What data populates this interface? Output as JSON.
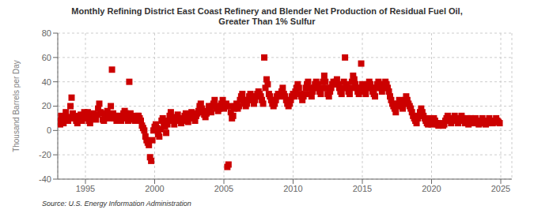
{
  "chart_data": {
    "type": "scatter",
    "title": "Monthly Refining District East Coast Refinery and Blender Net Production of Residual Fuel Oil,\nGreater Than 1% Sulfur",
    "ylabel": "Thousand Barrels per Day",
    "annotations": [
      "Source: U.S. Energy Information Administration"
    ],
    "color": "#cc0000",
    "marker": "square",
    "grid": true,
    "xlim": [
      1993.0,
      2025.8
    ],
    "ylim": [
      -40,
      80
    ],
    "xticks": [
      1995,
      2000,
      2005,
      2010,
      2015,
      2020,
      2025
    ],
    "yticks": [
      -40,
      -20,
      0,
      20,
      40,
      60,
      80
    ],
    "x": [
      1993.083,
      1993.167,
      1993.25,
      1993.333,
      1993.417,
      1993.5,
      1993.583,
      1993.667,
      1993.75,
      1993.833,
      1993.917,
      1994.0,
      1994.083,
      1994.167,
      1994.25,
      1994.333,
      1994.417,
      1994.5,
      1994.583,
      1994.667,
      1994.75,
      1994.833,
      1994.917,
      1995.0,
      1995.083,
      1995.167,
      1995.25,
      1995.333,
      1995.417,
      1995.5,
      1995.583,
      1995.667,
      1995.75,
      1995.833,
      1995.917,
      1996.0,
      1996.083,
      1996.167,
      1996.25,
      1996.333,
      1996.417,
      1996.5,
      1996.583,
      1996.667,
      1996.75,
      1996.833,
      1996.917,
      1997.0,
      1997.083,
      1997.167,
      1997.25,
      1997.333,
      1997.417,
      1997.5,
      1997.583,
      1997.667,
      1997.75,
      1997.833,
      1997.917,
      1998.0,
      1998.083,
      1998.167,
      1998.25,
      1998.333,
      1998.417,
      1998.5,
      1998.583,
      1998.667,
      1998.75,
      1998.833,
      1998.917,
      1999.0,
      1999.083,
      1999.167,
      1999.25,
      1999.333,
      1999.417,
      1999.5,
      1999.583,
      1999.667,
      1999.75,
      1999.833,
      1999.917,
      2000.0,
      2000.083,
      2000.167,
      2000.25,
      2000.333,
      2000.417,
      2000.5,
      2000.583,
      2000.667,
      2000.75,
      2000.833,
      2000.917,
      2001.0,
      2001.083,
      2001.167,
      2001.25,
      2001.333,
      2001.417,
      2001.5,
      2001.583,
      2001.667,
      2001.75,
      2001.833,
      2001.917,
      2002.0,
      2002.083,
      2002.167,
      2002.25,
      2002.333,
      2002.417,
      2002.5,
      2002.583,
      2002.667,
      2002.75,
      2002.833,
      2002.917,
      2003.0,
      2003.083,
      2003.167,
      2003.25,
      2003.333,
      2003.417,
      2003.5,
      2003.583,
      2003.667,
      2003.75,
      2003.833,
      2003.917,
      2004.0,
      2004.083,
      2004.167,
      2004.25,
      2004.333,
      2004.417,
      2004.5,
      2004.583,
      2004.667,
      2004.75,
      2004.833,
      2004.917,
      2005.0,
      2005.083,
      2005.167,
      2005.25,
      2005.333,
      2005.417,
      2005.5,
      2005.583,
      2005.667,
      2005.75,
      2005.833,
      2005.917,
      2006.0,
      2006.083,
      2006.167,
      2006.25,
      2006.333,
      2006.417,
      2006.5,
      2006.583,
      2006.667,
      2006.75,
      2006.833,
      2006.917,
      2007.0,
      2007.083,
      2007.167,
      2007.25,
      2007.333,
      2007.417,
      2007.5,
      2007.583,
      2007.667,
      2007.75,
      2007.833,
      2007.917,
      2008.0,
      2008.083,
      2008.167,
      2008.25,
      2008.333,
      2008.417,
      2008.5,
      2008.583,
      2008.667,
      2008.75,
      2008.833,
      2008.917,
      2009.0,
      2009.083,
      2009.167,
      2009.25,
      2009.333,
      2009.417,
      2009.5,
      2009.583,
      2009.667,
      2009.75,
      2009.833,
      2009.917,
      2010.0,
      2010.083,
      2010.167,
      2010.25,
      2010.333,
      2010.417,
      2010.5,
      2010.583,
      2010.667,
      2010.75,
      2010.833,
      2010.917,
      2011.0,
      2011.083,
      2011.167,
      2011.25,
      2011.333,
      2011.417,
      2011.5,
      2011.583,
      2011.667,
      2011.75,
      2011.833,
      2011.917,
      2012.0,
      2012.083,
      2012.167,
      2012.25,
      2012.333,
      2012.417,
      2012.5,
      2012.583,
      2012.667,
      2012.75,
      2012.833,
      2012.917,
      2013.0,
      2013.083,
      2013.167,
      2013.25,
      2013.333,
      2013.417,
      2013.5,
      2013.583,
      2013.667,
      2013.75,
      2013.833,
      2013.917,
      2014.0,
      2014.083,
      2014.167,
      2014.25,
      2014.333,
      2014.417,
      2014.5,
      2014.583,
      2014.667,
      2014.75,
      2014.833,
      2014.917,
      2015.0,
      2015.083,
      2015.167,
      2015.25,
      2015.333,
      2015.417,
      2015.5,
      2015.583,
      2015.667,
      2015.75,
      2015.833,
      2015.917,
      2016.0,
      2016.083,
      2016.167,
      2016.25,
      2016.333,
      2016.417,
      2016.5,
      2016.583,
      2016.667,
      2016.75,
      2016.833,
      2016.917,
      2017.0,
      2017.083,
      2017.167,
      2017.25,
      2017.333,
      2017.417,
      2017.5,
      2017.583,
      2017.667,
      2017.75,
      2017.833,
      2017.917,
      2018.0,
      2018.083,
      2018.167,
      2018.25,
      2018.333,
      2018.417,
      2018.5,
      2018.583,
      2018.667,
      2018.75,
      2018.833,
      2018.917,
      2019.0,
      2019.083,
      2019.167,
      2019.25,
      2019.333,
      2019.417,
      2019.5,
      2019.583,
      2019.667,
      2019.75,
      2019.833,
      2019.917,
      2020.0,
      2020.083,
      2020.167,
      2020.25,
      2020.333,
      2020.417,
      2020.5,
      2020.583,
      2020.667,
      2020.75,
      2020.833,
      2020.917,
      2021.0,
      2021.083,
      2021.167,
      2021.25,
      2021.333,
      2021.417,
      2021.5,
      2021.583,
      2021.667,
      2021.75,
      2021.833,
      2021.917,
      2022.0,
      2022.083,
      2022.167,
      2022.25,
      2022.333,
      2022.417,
      2022.5,
      2022.583,
      2022.667,
      2022.75,
      2022.833,
      2022.917,
      2023.0,
      2023.083,
      2023.167,
      2023.25,
      2023.333,
      2023.417,
      2023.5,
      2023.583,
      2023.667,
      2023.75,
      2023.833,
      2023.917,
      2024.0,
      2024.083,
      2024.167,
      2024.25,
      2024.333,
      2024.417,
      2024.5,
      2024.583,
      2024.667,
      2024.75,
      2024.833,
      2024.917
    ],
    "values": [
      8,
      5,
      12,
      7,
      6,
      9,
      15,
      10,
      8,
      11,
      20,
      27,
      14,
      10,
      12,
      8,
      6,
      9,
      11,
      13,
      8,
      12,
      15,
      10,
      13,
      15,
      8,
      6,
      10,
      12,
      14,
      11,
      9,
      13,
      18,
      22,
      15,
      14,
      9,
      8,
      11,
      14,
      16,
      13,
      10,
      20,
      50,
      14,
      10,
      12,
      8,
      12,
      11,
      10,
      8,
      12,
      14,
      16,
      14,
      10,
      8,
      40,
      14,
      12,
      9,
      11,
      8,
      10,
      12,
      12,
      10,
      8,
      4,
      2,
      0,
      -5,
      -8,
      -10,
      -12,
      -22,
      -25,
      -8,
      0,
      3,
      5,
      2,
      -3,
      -5,
      1,
      8,
      10,
      6,
      3,
      -2,
      5,
      8,
      12,
      15,
      10,
      8,
      5,
      9,
      11,
      13,
      8,
      10,
      6,
      10,
      8,
      12,
      14,
      9,
      7,
      11,
      13,
      15,
      12,
      10,
      8,
      12,
      14,
      16,
      20,
      22,
      18,
      15,
      13,
      11,
      14,
      16,
      20,
      18,
      15,
      20,
      22,
      25,
      20,
      18,
      16,
      18,
      20,
      22,
      25,
      18,
      20,
      22,
      -30,
      -28,
      20,
      15,
      10,
      12,
      18,
      20,
      22,
      18,
      20,
      25,
      28,
      30,
      25,
      22,
      20,
      22,
      25,
      28,
      30,
      28,
      25,
      22,
      25,
      28,
      30,
      32,
      30,
      28,
      25,
      22,
      60,
      35,
      42,
      38,
      30,
      28,
      25,
      22,
      20,
      22,
      25,
      28,
      30,
      28,
      30,
      32,
      35,
      30,
      28,
      25,
      22,
      20,
      22,
      25,
      28,
      30,
      28,
      32,
      35,
      38,
      35,
      30,
      28,
      25,
      28,
      30,
      35,
      38,
      40,
      35,
      30,
      28,
      32,
      35,
      38,
      40,
      38,
      35,
      32,
      30,
      35,
      40,
      45,
      40,
      35,
      30,
      28,
      32,
      35,
      38,
      40,
      38,
      40,
      42,
      38,
      35,
      32,
      30,
      35,
      40,
      60,
      38,
      35,
      32,
      30,
      35,
      40,
      45,
      42,
      38,
      35,
      32,
      30,
      35,
      55,
      38,
      35,
      32,
      30,
      35,
      38,
      40,
      38,
      35,
      32,
      30,
      28,
      35,
      38,
      40,
      38,
      35,
      32,
      35,
      38,
      40,
      38,
      35,
      32,
      28,
      25,
      22,
      20,
      18,
      15,
      20,
      22,
      25,
      22,
      20,
      18,
      22,
      25,
      28,
      25,
      22,
      20,
      18,
      15,
      12,
      10,
      8,
      6,
      10,
      12,
      15,
      18,
      15,
      12,
      10,
      8,
      6,
      5,
      8,
      10,
      5,
      8,
      10,
      8,
      6,
      5,
      4,
      5,
      6,
      5,
      4,
      5,
      8,
      10,
      12,
      10,
      8,
      6,
      8,
      10,
      12,
      10,
      8,
      6,
      8,
      10,
      12,
      10,
      8,
      6,
      8,
      10,
      5,
      8,
      10,
      8,
      6,
      8,
      10,
      8,
      6,
      5,
      6,
      8,
      10,
      8,
      6,
      5,
      6,
      8,
      10,
      8,
      7,
      6,
      7,
      8,
      10,
      8,
      7,
      6
    ]
  }
}
